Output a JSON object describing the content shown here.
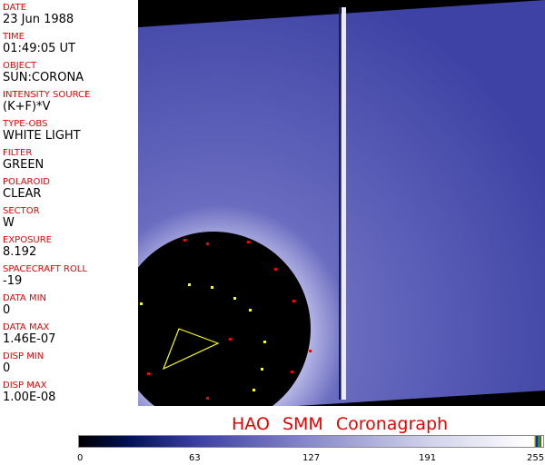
{
  "fields": [
    {
      "label": "DATE",
      "value": "23 Jun 1988"
    },
    {
      "label": "TIME",
      "value": "01:49:05 UT"
    },
    {
      "label": "OBJECT",
      "value": "SUN:CORONA"
    },
    {
      "label": "INTENSITY SOURCE",
      "value": "(K+F)*V"
    },
    {
      "label": "TYPE-OBS",
      "value": "WHITE LIGHT"
    },
    {
      "label": "FILTER",
      "value": "GREEN"
    },
    {
      "label": "POLAROID",
      "value": "CLEAR"
    },
    {
      "label": "SECTOR",
      "value": "W"
    },
    {
      "label": "EXPOSURE",
      "value": "8.192"
    },
    {
      "label": "SPACECRAFT ROLL",
      "value": "-19"
    },
    {
      "label": "DATA MIN",
      "value": "0"
    },
    {
      "label": "DATA MAX",
      "value": "1.46E-07"
    },
    {
      "label": "DISP MIN",
      "value": "0"
    },
    {
      "label": "DISP MAX",
      "value": "1.00E-08"
    }
  ],
  "title": "HAO  SMM Coronagraph",
  "colorbar": {
    "ticks": [
      "0",
      "63",
      "127",
      "191",
      "255"
    ],
    "colors": {
      "low": "#000000",
      "mid": "#3a3ea0",
      "high": "#ffffff"
    }
  }
}
